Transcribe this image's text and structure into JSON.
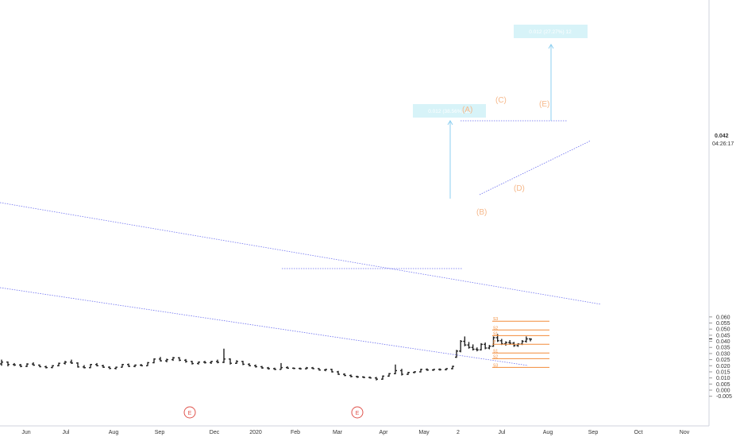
{
  "chart_data": {
    "type": "bar",
    "y_ticks": [
      "0.060",
      "0.055",
      "0.050",
      "0.045",
      "0.040",
      "0.035",
      "0.030",
      "0.025",
      "0.020",
      "0.015",
      "0.010",
      "0.005",
      "0.000",
      "-0.005"
    ],
    "ylim": [
      -0.005,
      0.064
    ],
    "last_price": "0.042",
    "countdown": "04:26:17",
    "time_labels": [
      "Jun",
      "Jul",
      "Aug",
      "Sep",
      "Dec",
      "2020",
      "Feb",
      "Mar",
      "Apr",
      "May",
      "2",
      "Jul",
      "Aug",
      "Sep",
      "Oct",
      "Nov"
    ],
    "events": [
      "E",
      "E"
    ],
    "fib_levels": [
      {
        "label": "S3",
        "price": 0.0565
      },
      {
        "label": "S2",
        "price": 0.0493
      },
      {
        "label": "S1",
        "price": 0.0447
      },
      {
        "label": "P",
        "price": 0.0376
      },
      {
        "label": "S1",
        "price": 0.0304
      },
      {
        "label": "S2",
        "price": 0.0258
      },
      {
        "label": "S3",
        "price": 0.0186
      }
    ],
    "wave_labels": [
      "(A)",
      "(B)",
      "(C)",
      "(D)",
      "(E)"
    ],
    "measure_labels": [
      "0.012 (38.56%) 12",
      "0.012 (27.27%) 12"
    ],
    "series": [
      {
        "ohlc": [
          [
            0.0215,
            0.025,
            0.02,
            0.023
          ],
          [
            0.023,
            0.0235,
            0.0195,
            0.021
          ],
          [
            0.021,
            0.0222,
            0.0198,
            0.0206
          ],
          [
            0.0206,
            0.0215,
            0.0188,
            0.0195
          ],
          [
            0.0195,
            0.022,
            0.019,
            0.0214
          ],
          [
            0.0214,
            0.0228,
            0.02,
            0.0205
          ],
          [
            0.0205,
            0.021,
            0.0188,
            0.0192
          ],
          [
            0.0192,
            0.02,
            0.0178,
            0.0185
          ],
          [
            0.0185,
            0.0205,
            0.018,
            0.02
          ],
          [
            0.02,
            0.0225,
            0.0195,
            0.022
          ],
          [
            0.022,
            0.024,
            0.021,
            0.023
          ],
          [
            0.023,
            0.025,
            0.0215,
            0.0222
          ],
          [
            0.0222,
            0.0228,
            0.0185,
            0.019
          ],
          [
            0.019,
            0.0205,
            0.0178,
            0.0184
          ],
          [
            0.0184,
            0.0215,
            0.018,
            0.021
          ],
          [
            0.021,
            0.0222,
            0.0195,
            0.02
          ],
          [
            0.02,
            0.0208,
            0.0182,
            0.0188
          ],
          [
            0.0188,
            0.0195,
            0.0172,
            0.0178
          ],
          [
            0.0178,
            0.0192,
            0.017,
            0.0188
          ],
          [
            0.0188,
            0.0215,
            0.0185,
            0.021
          ],
          [
            0.021,
            0.0218,
            0.019,
            0.0195
          ],
          [
            0.0195,
            0.021,
            0.0188,
            0.0205
          ],
          [
            0.0205,
            0.0214,
            0.0195,
            0.02
          ],
          [
            0.02,
            0.023,
            0.0198,
            0.0225
          ],
          [
            0.0225,
            0.026,
            0.022,
            0.0255
          ],
          [
            0.0255,
            0.0272,
            0.0235,
            0.024
          ],
          [
            0.024,
            0.0258,
            0.0228,
            0.025
          ],
          [
            0.025,
            0.0272,
            0.024,
            0.0265
          ],
          [
            0.0265,
            0.027,
            0.0238,
            0.0245
          ],
          [
            0.0245,
            0.0255,
            0.0225,
            0.0235
          ],
          [
            0.0235,
            0.024,
            0.021,
            0.0218
          ],
          [
            0.0218,
            0.0235,
            0.021,
            0.023
          ],
          [
            0.023,
            0.024,
            0.0218,
            0.0225
          ],
          [
            0.0225,
            0.024,
            0.0215,
            0.0235
          ],
          [
            0.0235,
            0.025,
            0.022,
            0.0228
          ],
          [
            0.0228,
            0.034,
            0.0222,
            0.0255
          ],
          [
            0.0255,
            0.026,
            0.021,
            0.022
          ],
          [
            0.022,
            0.0245,
            0.0215,
            0.0235
          ],
          [
            0.0235,
            0.024,
            0.0205,
            0.0212
          ],
          [
            0.0212,
            0.022,
            0.0195,
            0.02
          ],
          [
            0.02,
            0.021,
            0.0185,
            0.0192
          ],
          [
            0.0192,
            0.0198,
            0.0175,
            0.0182
          ],
          [
            0.0182,
            0.019,
            0.0168,
            0.0176
          ],
          [
            0.0176,
            0.0184,
            0.0165,
            0.017
          ],
          [
            0.017,
            0.0222,
            0.0168,
            0.0185
          ],
          [
            0.0185,
            0.0195,
            0.0175,
            0.018
          ],
          [
            0.018,
            0.0186,
            0.0172,
            0.0178
          ],
          [
            0.0178,
            0.0185,
            0.0168,
            0.0175
          ],
          [
            0.0175,
            0.019,
            0.017,
            0.0182
          ],
          [
            0.0182,
            0.019,
            0.0172,
            0.0176
          ],
          [
            0.0176,
            0.018,
            0.016,
            0.0165
          ],
          [
            0.0165,
            0.0175,
            0.0155,
            0.017
          ],
          [
            0.017,
            0.0175,
            0.0145,
            0.015
          ],
          [
            0.015,
            0.0158,
            0.0125,
            0.013
          ],
          [
            0.013,
            0.0138,
            0.0115,
            0.012
          ],
          [
            0.012,
            0.0128,
            0.0105,
            0.0112
          ],
          [
            0.0112,
            0.0118,
            0.01,
            0.0108
          ],
          [
            0.0108,
            0.0114,
            0.0098,
            0.0104
          ],
          [
            0.0104,
            0.0112,
            0.0095,
            0.01
          ],
          [
            0.01,
            0.0108,
            0.008,
            0.009
          ],
          [
            0.009,
            0.012,
            0.0085,
            0.0115
          ],
          [
            0.0115,
            0.014,
            0.011,
            0.0135
          ],
          [
            0.0135,
            0.021,
            0.013,
            0.016
          ],
          [
            0.016,
            0.0175,
            0.012,
            0.013
          ],
          [
            0.013,
            0.015,
            0.0125,
            0.0145
          ],
          [
            0.0145,
            0.0155,
            0.0138,
            0.015
          ],
          [
            0.015,
            0.0175,
            0.0145,
            0.017
          ],
          [
            0.017,
            0.0178,
            0.0158,
            0.0165
          ],
          [
            0.0165,
            0.0174,
            0.0158,
            0.017
          ],
          [
            0.017,
            0.0178,
            0.016,
            0.0168
          ],
          [
            0.0168,
            0.018,
            0.0162,
            0.0176
          ],
          [
            0.0176,
            0.02,
            0.017,
            0.0195
          ],
          [
            0.027,
            0.033,
            0.0265,
            0.032
          ],
          [
            0.032,
            0.041,
            0.031,
            0.04
          ],
          [
            0.04,
            0.044,
            0.036,
            0.037
          ],
          [
            0.037,
            0.0395,
            0.034,
            0.035
          ],
          [
            0.035,
            0.0375,
            0.0325,
            0.0335
          ],
          [
            0.0335,
            0.035,
            0.0318,
            0.033
          ],
          [
            0.033,
            0.0385,
            0.0325,
            0.0375
          ],
          [
            0.0375,
            0.039,
            0.0335,
            0.0345
          ],
          [
            0.0345,
            0.037,
            0.0335,
            0.036
          ],
          [
            0.036,
            0.044,
            0.0355,
            0.043
          ],
          [
            0.043,
            0.046,
            0.0395,
            0.0405
          ],
          [
            0.0405,
            0.042,
            0.037,
            0.038
          ],
          [
            0.038,
            0.04,
            0.0365,
            0.039
          ],
          [
            0.039,
            0.041,
            0.0372,
            0.0385
          ],
          [
            0.0385,
            0.0395,
            0.0355,
            0.0365
          ],
          [
            0.0365,
            0.0385,
            0.0355,
            0.0378
          ],
          [
            0.0378,
            0.041,
            0.037,
            0.04
          ],
          [
            0.04,
            0.044,
            0.039,
            0.042
          ],
          [
            0.042,
            0.0425,
            0.04,
            0.0418
          ]
        ]
      }
    ]
  }
}
